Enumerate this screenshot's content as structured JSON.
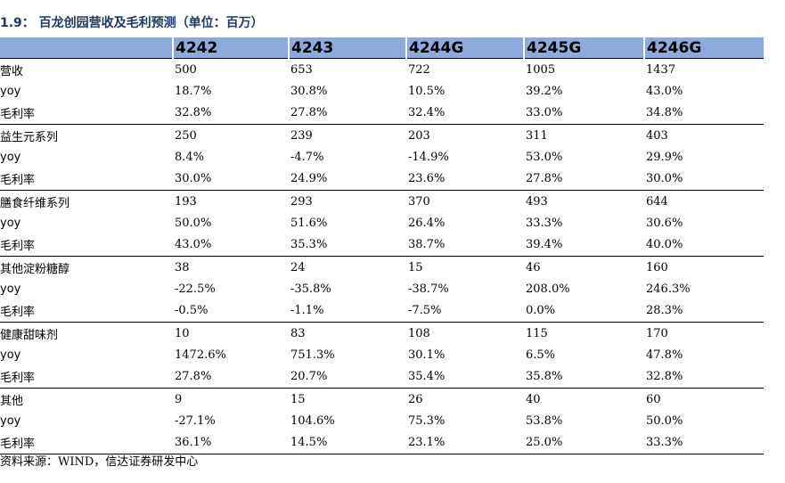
{
  "title": "1.9： 百龙创园营收及毛利预测（单位：百万）",
  "table": {
    "columns": [
      "",
      "4242",
      "4243",
      "4244G",
      "4245G",
      "4246G"
    ],
    "groups": [
      {
        "rows": [
          {
            "label": "营收",
            "values": [
              "500",
              "653",
              "722",
              "1005",
              "1437"
            ]
          },
          {
            "label": "yoy",
            "values": [
              "18.7%",
              "30.8%",
              "10.5%",
              "39.2%",
              "43.0%"
            ]
          },
          {
            "label": "毛利率",
            "values": [
              "32.8%",
              "27.8%",
              "32.4%",
              "33.0%",
              "34.8%"
            ]
          }
        ]
      },
      {
        "rows": [
          {
            "label": "益生元系列",
            "values": [
              "250",
              "239",
              "203",
              "311",
              "403"
            ]
          },
          {
            "label": "yoy",
            "values": [
              "8.4%",
              "-4.7%",
              "-14.9%",
              "53.0%",
              "29.9%"
            ]
          },
          {
            "label": "毛利率",
            "values": [
              "30.0%",
              "24.9%",
              "23.6%",
              "27.8%",
              "30.0%"
            ]
          }
        ]
      },
      {
        "rows": [
          {
            "label": "膳食纤维系列",
            "values": [
              "193",
              "293",
              "370",
              "493",
              "644"
            ]
          },
          {
            "label": "yoy",
            "values": [
              "50.0%",
              "51.6%",
              "26.4%",
              "33.3%",
              "30.6%"
            ]
          },
          {
            "label": "毛利率",
            "values": [
              "43.0%",
              "35.3%",
              "38.7%",
              "39.4%",
              "40.0%"
            ]
          }
        ]
      },
      {
        "rows": [
          {
            "label": "其他淀粉糖醇",
            "values": [
              "38",
              "24",
              "15",
              "46",
              "160"
            ]
          },
          {
            "label": "yoy",
            "values": [
              "-22.5%",
              "-35.8%",
              "-38.7%",
              "208.0%",
              "246.3%"
            ]
          },
          {
            "label": "毛利率",
            "values": [
              "-0.5%",
              "-1.1%",
              "-7.5%",
              "0.0%",
              "28.3%"
            ]
          }
        ]
      },
      {
        "rows": [
          {
            "label": "健康甜味剂",
            "values": [
              "10",
              "83",
              "108",
              "115",
              "170"
            ]
          },
          {
            "label": "yoy",
            "values": [
              "1472.6%",
              "751.3%",
              "30.1%",
              "6.5%",
              "47.8%"
            ]
          },
          {
            "label": "毛利率",
            "values": [
              "27.8%",
              "20.7%",
              "35.4%",
              "35.8%",
              "32.8%"
            ]
          }
        ]
      },
      {
        "rows": [
          {
            "label": "其他",
            "values": [
              "9",
              "15",
              "26",
              "40",
              "60"
            ]
          },
          {
            "label": "yoy",
            "values": [
              "-27.1%",
              "104.6%",
              "75.3%",
              "53.8%",
              "50.0%"
            ]
          },
          {
            "label": "毛利率",
            "values": [
              "36.1%",
              "14.5%",
              "23.1%",
              "25.0%",
              "33.3%"
            ]
          }
        ]
      }
    ]
  },
  "source": "资料来源：WIND，信达证券研发中心"
}
